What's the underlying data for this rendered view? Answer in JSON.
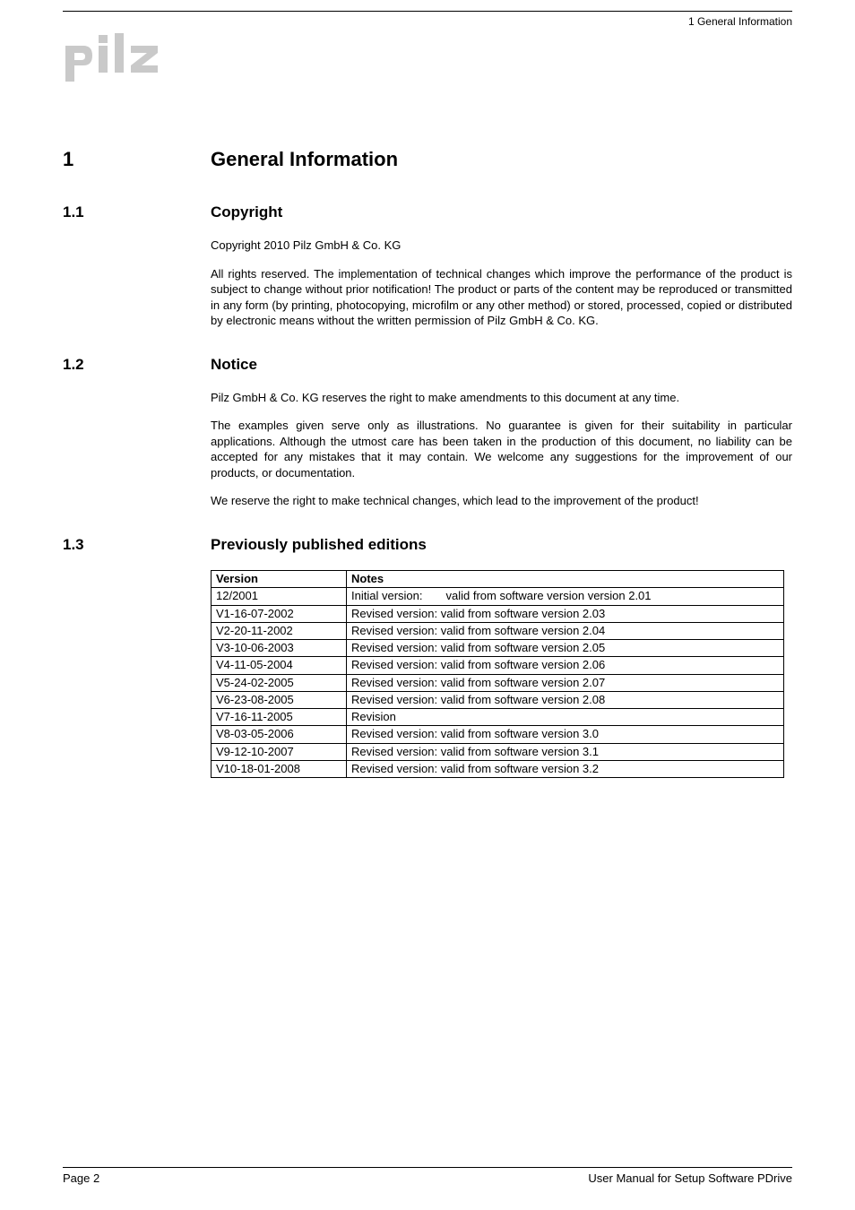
{
  "header": {
    "section_label": "1  General Information"
  },
  "logo": {
    "text": "pilz",
    "fill": "#c9c9c9"
  },
  "h1": {
    "num": "1",
    "title": "General Information"
  },
  "sec_1_1": {
    "num": "1.1",
    "title": "Copyright",
    "p1": "Copyright 2010 Pilz GmbH & Co. KG",
    "p2": "All rights reserved. The implementation of technical changes which improve the performance of the product is subject to change without prior notification! The product or parts of the content may be reproduced or transmitted in any form (by printing, photocopying, microfilm or any other method) or stored, processed, copied or distributed by electronic means without the written permission of Pilz GmbH & Co. KG."
  },
  "sec_1_2": {
    "num": "1.2",
    "title": "Notice",
    "p1": "Pilz GmbH & Co. KG reserves the right to make amendments to this document at any time.",
    "p2": "The examples given serve only as illustrations. No guarantee is given for their suitability in particular applications. Although the utmost care has been taken in the production of this document, no liability can be accepted for any mistakes that it may contain. We welcome any suggestions for the improvement of our products, or documentation.",
    "p3": "We reserve the right to make technical changes, which lead to the improvement of the product!"
  },
  "sec_1_3": {
    "num": "1.3",
    "title": "Previously published editions",
    "table": {
      "headers": [
        "Version",
        "Notes"
      ],
      "rows": [
        [
          "12/2001",
          "Initial version:  valid from software version version 2.01"
        ],
        [
          "V1-16-07-2002",
          "Revised version:  valid from software version 2.03"
        ],
        [
          "V2-20-11-2002",
          "Revised version:  valid from software version 2.04"
        ],
        [
          "V3-10-06-2003",
          "Revised version:  valid from software version 2.05"
        ],
        [
          "V4-11-05-2004",
          "Revised version:  valid from software version 2.06"
        ],
        [
          "V5-24-02-2005",
          "Revised version:  valid from software version 2.07"
        ],
        [
          "V6-23-08-2005",
          "Revised version:  valid from software version 2.08"
        ],
        [
          "V7-16-11-2005",
          "Revision"
        ],
        [
          "V8-03-05-2006",
          "Revised version:  valid from software version 3.0"
        ],
        [
          "V9-12-10-2007",
          "Revised version:  valid from software version 3.1"
        ],
        [
          "V10-18-01-2008",
          "Revised version:  valid from software version 3.2"
        ]
      ]
    }
  },
  "footer": {
    "left": "Page 2",
    "right": "User Manual for Setup Software PDrive"
  }
}
